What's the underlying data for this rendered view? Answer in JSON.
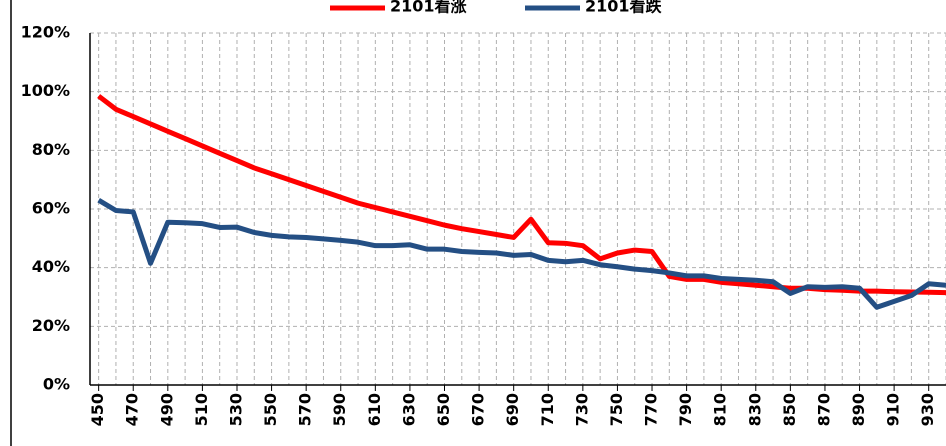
{
  "chart_data": {
    "type": "line",
    "x": [
      450,
      460,
      470,
      480,
      490,
      500,
      510,
      520,
      530,
      540,
      550,
      560,
      570,
      580,
      590,
      600,
      610,
      620,
      630,
      640,
      650,
      660,
      670,
      680,
      690,
      700,
      710,
      720,
      730,
      740,
      750,
      760,
      770,
      780,
      790,
      800,
      810,
      820,
      830,
      840,
      850,
      860,
      870,
      880,
      890,
      900,
      910,
      920,
      930,
      940
    ],
    "series": [
      {
        "name": "2101看涨",
        "color": "#ff0000",
        "values": [
          98.5,
          94,
          91.5,
          89,
          86.5,
          84,
          81.5,
          79,
          76.5,
          74,
          72,
          70,
          68,
          66,
          64,
          62,
          60.5,
          59,
          57.5,
          56,
          54.5,
          53.3,
          52.3,
          51.3,
          50.3,
          56.5,
          48.5,
          48.3,
          47.5,
          43,
          45,
          46,
          45.5,
          37,
          36,
          36,
          35,
          34.5,
          34,
          33.5,
          33,
          33,
          32.5,
          32.3,
          32,
          32,
          31.8,
          31.7,
          31.6,
          31.5
        ]
      },
      {
        "name": "2101看跌",
        "color": "#244f84",
        "values": [
          63,
          59.5,
          59,
          41.5,
          55.5,
          55.3,
          55,
          53.7,
          53.8,
          52,
          51,
          50.5,
          50.3,
          49.8,
          49.3,
          48.7,
          47.5,
          47.5,
          47.8,
          46.3,
          46.3,
          45.5,
          45.2,
          45,
          44.2,
          44.5,
          42.5,
          42,
          42.5,
          41,
          40.3,
          39.5,
          39,
          38.2,
          37.2,
          37.2,
          36.3,
          36,
          35.7,
          35.2,
          31.2,
          33.5,
          33.3,
          33.5,
          33,
          26.5,
          28.5,
          30.5,
          34.5,
          34
        ]
      }
    ],
    "xlim": [
      445,
      940
    ],
    "xticks": [
      450,
      470,
      490,
      510,
      530,
      550,
      570,
      590,
      610,
      630,
      650,
      670,
      690,
      710,
      730,
      750,
      770,
      790,
      810,
      830,
      850,
      870,
      890,
      910,
      930
    ],
    "ylim": [
      0,
      120
    ],
    "yticks": [
      {
        "value": 0,
        "label": "0%"
      },
      {
        "value": 20,
        "label": "20%"
      },
      {
        "value": 40,
        "label": "40%"
      },
      {
        "value": 60,
        "label": "60%"
      },
      {
        "value": 80,
        "label": "80%"
      },
      {
        "value": 100,
        "label": "100%"
      },
      {
        "value": 120,
        "label": "120%"
      }
    ],
    "grid": true,
    "legend": "top"
  }
}
